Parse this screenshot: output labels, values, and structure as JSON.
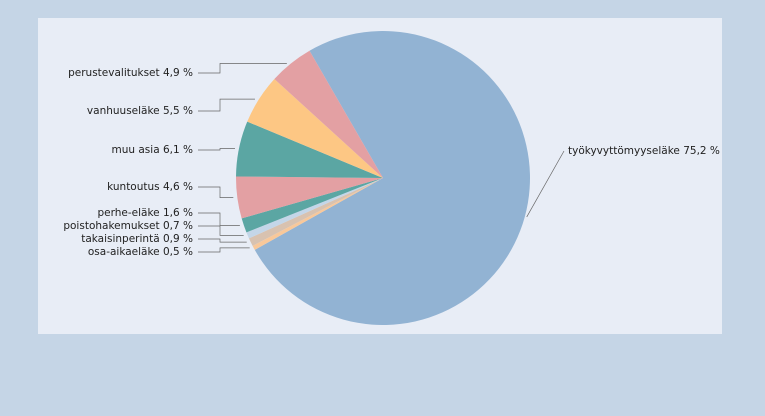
{
  "chart_data": {
    "type": "pie",
    "categories": [
      "työkyvyttömyyseläke",
      "osa-aikaeläke",
      "takaisinperintä",
      "poistohakemukset",
      "perhe-eläke",
      "kuntoutus",
      "muu asia",
      "vanhuuseläke",
      "perustevalitukset"
    ],
    "values": [
      75.2,
      0.5,
      0.9,
      0.7,
      1.6,
      4.6,
      6.1,
      5.5,
      4.9
    ],
    "value_labels": [
      "75,2 %",
      "0,5 %",
      "0,9 %",
      "0,7 %",
      "1,6 %",
      "4,6 %",
      "6,1 %",
      "5,5 %",
      "4,9 %"
    ],
    "colors": [
      "#92b3d3",
      "#f8c89a",
      "#d8c2b0",
      "#c4d6e8",
      "#5ba6a3",
      "#e3a0a3",
      "#5ba6a3",
      "#fdc784",
      "#e3a0a3"
    ]
  }
}
